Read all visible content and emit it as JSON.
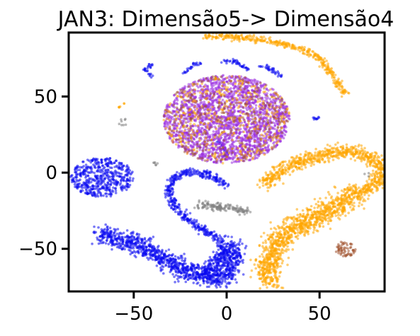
{
  "chart_data": {
    "type": "scatter",
    "title": "JAN3: Dimensão5-> Dimensão4",
    "xlabel": "",
    "ylabel": "",
    "xlim": [
      -85,
      85
    ],
    "ylim": [
      -78,
      92
    ],
    "grid": false,
    "legend": "none",
    "x_ticks": [
      {
        "value": -50,
        "label": "−50"
      },
      {
        "value": 0,
        "label": "0"
      },
      {
        "value": 50,
        "label": "50"
      }
    ],
    "y_ticks": [
      {
        "value": -50,
        "label": "−50"
      },
      {
        "value": 0,
        "label": "0"
      },
      {
        "value": 50,
        "label": "50"
      }
    ],
    "colors": {
      "blue": "#0a0af0",
      "orange": "#ffa500",
      "purple": "#9b30e0",
      "brown": "#a0522d",
      "gray": "#7f7f7f"
    },
    "clusters": [
      {
        "color": "blue",
        "shape": "blob",
        "center": [
          -67,
          -3
        ],
        "radius": [
          17,
          13
        ],
        "density": 1.0
      },
      {
        "color": "blue",
        "shape": "path",
        "pts": [
          [
            -68,
            -40
          ],
          [
            -60,
            -44
          ],
          [
            -48,
            -47
          ],
          [
            -40,
            -52
          ],
          [
            -32,
            -58
          ],
          [
            -22,
            -64
          ],
          [
            -12,
            -68
          ],
          [
            -4,
            -70
          ],
          [
            2,
            -63
          ],
          [
            4,
            -54
          ],
          [
            2,
            -47
          ]
        ],
        "width": 7
      },
      {
        "color": "blue",
        "shape": "path",
        "pts": [
          [
            -14,
            -68
          ],
          [
            -8,
            -62
          ],
          [
            -3,
            -55
          ],
          [
            0,
            -48
          ]
        ],
        "width": 5
      },
      {
        "color": "blue",
        "shape": "path",
        "pts": [
          [
            -2,
            -46
          ],
          [
            -12,
            -38
          ],
          [
            -22,
            -30
          ],
          [
            -29,
            -20
          ],
          [
            -31,
            -10
          ],
          [
            -28,
            -2
          ],
          [
            -20,
            1
          ],
          [
            -8,
            -2
          ],
          [
            0,
            -8
          ]
        ],
        "width": 3
      },
      {
        "color": "blue",
        "shape": "path",
        "pts": [
          [
            -3,
            74
          ],
          [
            5,
            73
          ],
          [
            12,
            67
          ]
        ],
        "width": 1.5
      },
      {
        "color": "blue",
        "shape": "path",
        "pts": [
          [
            -40,
            63
          ],
          [
            -44,
            68
          ],
          [
            -40,
            71
          ]
        ],
        "width": 1.5
      },
      {
        "color": "blue",
        "shape": "path",
        "pts": [
          [
            -22,
            66
          ],
          [
            -18,
            70
          ],
          [
            -14,
            73
          ]
        ],
        "width": 1.5
      },
      {
        "color": "blue",
        "shape": "path",
        "pts": [
          [
            18,
            71
          ],
          [
            24,
            68
          ],
          [
            30,
            63
          ]
        ],
        "width": 1.5
      },
      {
        "color": "blue",
        "shape": "path",
        "pts": [
          [
            -5,
            20
          ],
          [
            -2,
            18
          ],
          [
            0,
            12
          ]
        ],
        "width": 1.5
      },
      {
        "color": "blue",
        "shape": "path",
        "pts": [
          [
            46,
            36
          ],
          [
            50,
            35
          ]
        ],
        "width": 1.5
      },
      {
        "color": "orange",
        "shape": "path",
        "pts": [
          [
            -12,
            90
          ],
          [
            5,
            89
          ],
          [
            22,
            87
          ],
          [
            38,
            82
          ],
          [
            50,
            76
          ],
          [
            58,
            62
          ],
          [
            64,
            51
          ]
        ],
        "width": 2.5
      },
      {
        "color": "orange",
        "shape": "path",
        "pts": [
          [
            20,
            -8
          ],
          [
            30,
            2
          ],
          [
            44,
            9
          ],
          [
            58,
            14
          ],
          [
            70,
            14
          ],
          [
            80,
            8
          ],
          [
            84,
            2
          ],
          [
            82,
            -6
          ],
          [
            74,
            -12
          ]
        ],
        "width": 5
      },
      {
        "color": "orange",
        "shape": "path",
        "pts": [
          [
            72,
            -12
          ],
          [
            60,
            -20
          ],
          [
            50,
            -28
          ],
          [
            42,
            -34
          ],
          [
            34,
            -38
          ],
          [
            28,
            -44
          ],
          [
            24,
            -54
          ],
          [
            22,
            -64
          ],
          [
            24,
            -72
          ]
        ],
        "width": 8
      },
      {
        "color": "orange",
        "shape": "blob",
        "center": [
          -57,
          45
        ],
        "radius": [
          2,
          2.5
        ],
        "density": 0.5
      },
      {
        "color": "gray",
        "shape": "path",
        "pts": [
          [
            -15,
            -21
          ],
          [
            -5,
            -22
          ],
          [
            5,
            -24
          ],
          [
            12,
            -26
          ]
        ],
        "width": 3
      },
      {
        "color": "gray",
        "shape": "blob",
        "center": [
          -56,
          33
        ],
        "radius": [
          2.5,
          3
        ],
        "density": 0.5
      },
      {
        "color": "gray",
        "shape": "blob",
        "center": [
          -37,
          6
        ],
        "radius": [
          2.5,
          2
        ],
        "density": 0.5
      },
      {
        "color": "gray",
        "shape": "blob",
        "center": [
          76,
          -1
        ],
        "radius": [
          2,
          2
        ],
        "density": 0.3
      },
      {
        "color": "brown",
        "shape": "blob",
        "center": [
          64,
          -50
        ],
        "radius": [
          5.5,
          5
        ],
        "density": 1.0
      },
      {
        "color": "purple",
        "shape": "blob",
        "center": [
          0,
          35
        ],
        "radius": [
          34,
          29
        ],
        "density": 1.0
      }
    ]
  }
}
